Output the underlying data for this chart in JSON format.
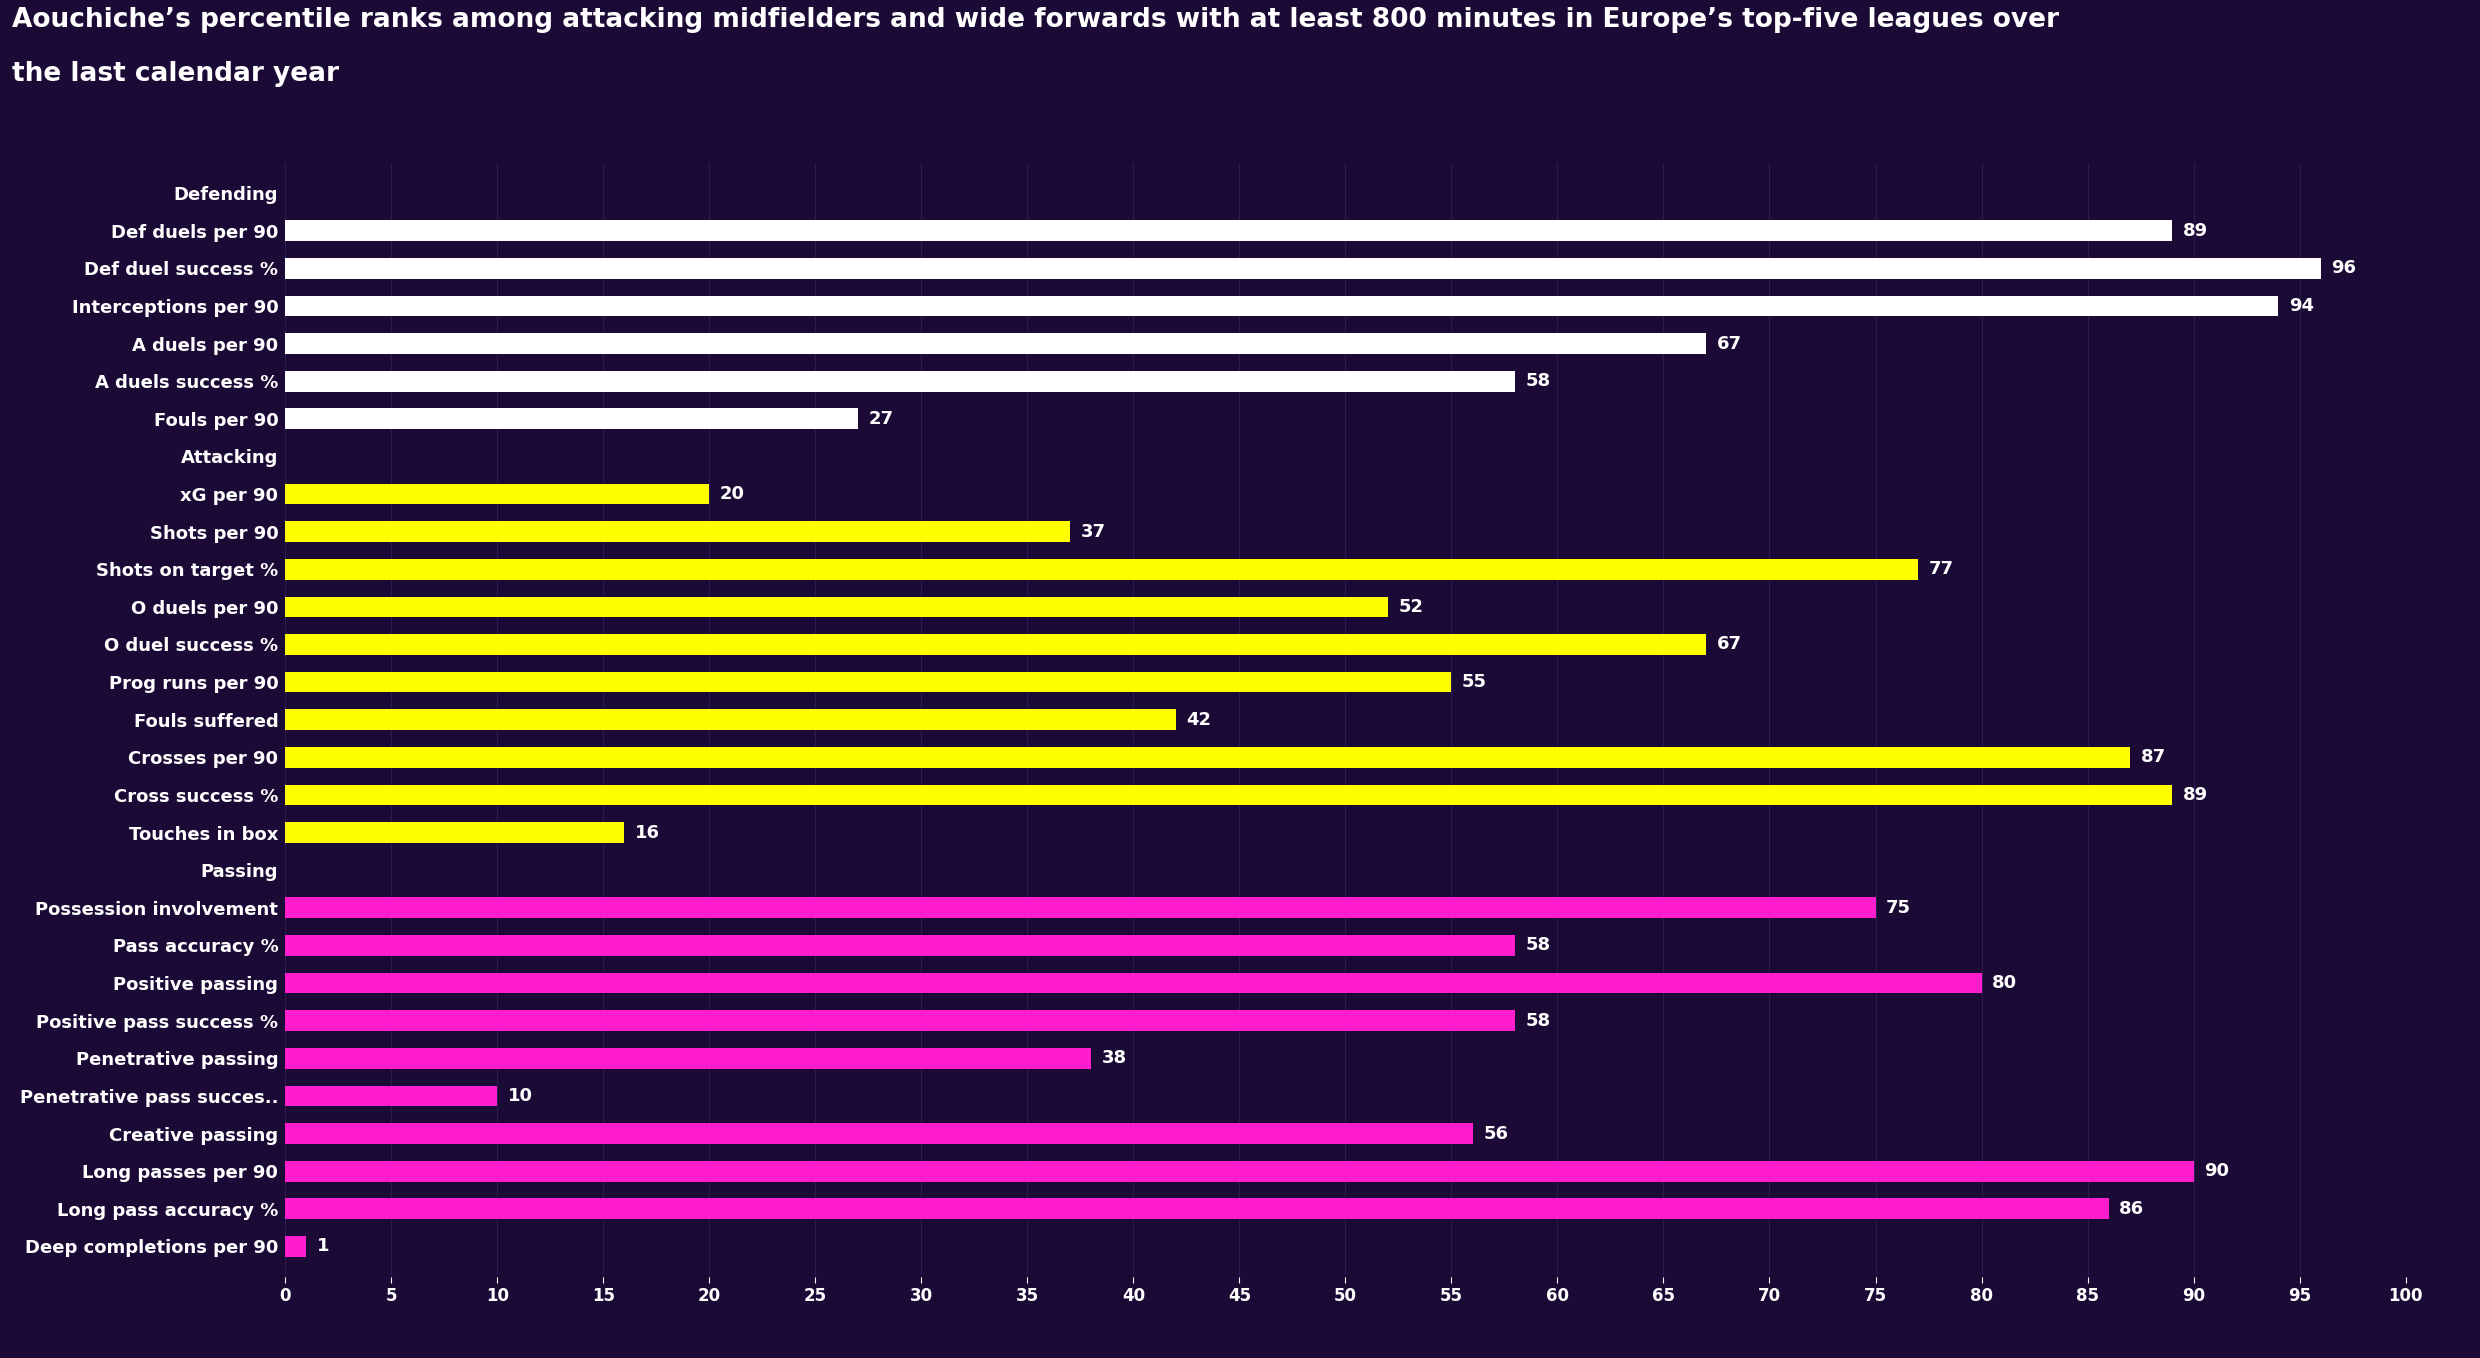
{
  "title_line1": "Aouchiche’s percentile ranks among attacking midfielders and wide forwards with at least 800 minutes in Europe’s top-five leagues over",
  "title_line2": "the last calendar year",
  "background_color": "#1a0a35",
  "title_color": "#ffffff",
  "title_fontsize": 19,
  "bar_height": 0.55,
  "xlim": [
    0,
    100
  ],
  "xticks": [
    0,
    5,
    10,
    15,
    20,
    25,
    30,
    35,
    40,
    45,
    50,
    55,
    60,
    65,
    70,
    75,
    80,
    85,
    90,
    95,
    100
  ],
  "categories": [
    "Defending",
    "Def duels per 90",
    "Def duel success %",
    "Interceptions per 90",
    "A duels per 90",
    "A duels success %",
    "Fouls per 90",
    "Attacking",
    "xG per 90",
    "Shots per 90",
    "Shots on target %",
    "O duels per 90",
    "O duel success %",
    "Prog runs per 90",
    "Fouls suffered",
    "Crosses per 90",
    "Cross success %",
    "Touches in box",
    "Passing",
    "Possession involvement",
    "Pass accuracy %",
    "Positive passing",
    "Positive pass success %",
    "Penetrative passing",
    "Penetrative pass succes..",
    "Creative passing",
    "Long passes per 90",
    "Long pass accuracy %",
    "Deep completions per 90"
  ],
  "values": [
    null,
    89,
    96,
    94,
    67,
    58,
    27,
    null,
    20,
    37,
    77,
    52,
    67,
    55,
    42,
    87,
    89,
    16,
    null,
    75,
    58,
    80,
    58,
    38,
    10,
    56,
    90,
    86,
    1
  ],
  "colors": {
    "Defending": null,
    "Def duels per 90": "#ffffff",
    "Def duel success %": "#ffffff",
    "Interceptions per 90": "#ffffff",
    "A duels per 90": "#ffffff",
    "A duels success %": "#ffffff",
    "Fouls per 90": "#ffffff",
    "Attacking": null,
    "xG per 90": "#ffff00",
    "Shots per 90": "#ffff00",
    "Shots on target %": "#ffff00",
    "O duels per 90": "#ffff00",
    "O duel success %": "#ffff00",
    "Prog runs per 90": "#ffff00",
    "Fouls suffered": "#ffff00",
    "Crosses per 90": "#ffff00",
    "Cross success %": "#ffff00",
    "Touches in box": "#ffff00",
    "Passing": null,
    "Possession involvement": "#ff1dce",
    "Pass accuracy %": "#ff1dce",
    "Positive passing": "#ff1dce",
    "Positive pass success %": "#ff1dce",
    "Penetrative passing": "#ff1dce",
    "Penetrative pass succes..": "#ff1dce",
    "Creative passing": "#ff1dce",
    "Long passes per 90": "#ff1dce",
    "Long pass accuracy %": "#ff1dce",
    "Deep completions per 90": "#ff1dce"
  },
  "label_color": "#ffffff",
  "label_fontsize": 13,
  "tick_fontsize": 12,
  "ylabel_fontsize": 13,
  "section_header_fontsize": 13,
  "axis_color": "#ffffff",
  "grid_color": "#2e1a55"
}
